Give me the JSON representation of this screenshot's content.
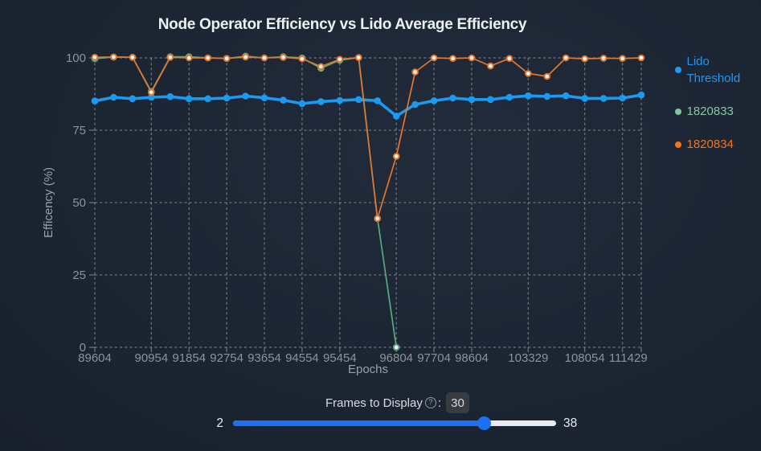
{
  "title": "Node Operator Efficiency vs Lido Average Efficiency",
  "chart_data": {
    "type": "line",
    "title": "Node Operator Efficiency vs Lido Average Efficiency",
    "xlabel": "Epochs",
    "ylabel": "Efficency (%)",
    "ylim": [
      0,
      100
    ],
    "yticks": [
      0,
      25,
      50,
      75,
      100
    ],
    "n_points": 30,
    "x_tick_labels": [
      {
        "index": 0,
        "label": "89604"
      },
      {
        "index": 3,
        "label": "90954"
      },
      {
        "index": 5,
        "label": "91854"
      },
      {
        "index": 7,
        "label": "92754"
      },
      {
        "index": 9,
        "label": "93654"
      },
      {
        "index": 11,
        "label": "94554"
      },
      {
        "index": 13,
        "label": "95454"
      },
      {
        "index": 16,
        "label": "96804"
      },
      {
        "index": 18,
        "label": "97704"
      },
      {
        "index": 20,
        "label": "98604"
      },
      {
        "index": 23,
        "label": "103329"
      },
      {
        "index": 26,
        "label": "108054"
      },
      {
        "index": 28,
        "label": "111429"
      }
    ],
    "grid": "dashed",
    "legend_position": "right",
    "series": [
      {
        "name": "Lido Threshold",
        "line_color": "#1b9af2",
        "marker": "solid-dot",
        "values": [
          85.1,
          86.4,
          85.9,
          86.4,
          86.6,
          85.9,
          85.9,
          86.1,
          86.8,
          86.2,
          85.4,
          84.2,
          84.9,
          85.3,
          85.6,
          85.2,
          79.9,
          83.9,
          85.2,
          86.1,
          85.6,
          85.6,
          86.4,
          86.9,
          86.7,
          86.9,
          86.0,
          86.0,
          86.1,
          87.2
        ]
      },
      {
        "name": "1820833",
        "line_color": "#57aa81",
        "marker": "white-dot-ring",
        "values": [
          99.7,
          100.3,
          100.2,
          88.4,
          100.4,
          100.4,
          100.0,
          99.8,
          100.6,
          100.0,
          100.4,
          100.0,
          96.4,
          99.2,
          100.1,
          44.5,
          0,
          null,
          null,
          null,
          null,
          null,
          null,
          null,
          null,
          null,
          null,
          null,
          null,
          null
        ]
      },
      {
        "name": "1820834",
        "line_color": "#e4762e",
        "marker": "white-dot-ring",
        "values": [
          100.2,
          100.3,
          100.2,
          88.1,
          100.2,
          100.0,
          100.0,
          99.8,
          100.3,
          100.0,
          100.2,
          99.7,
          97.0,
          99.5,
          100.1,
          44.5,
          66.0,
          95.1,
          100.0,
          99.8,
          100.0,
          97.2,
          99.8,
          94.6,
          93.6,
          100.0,
          99.7,
          99.9,
          99.8,
          100.0
        ]
      }
    ]
  },
  "legend": {
    "items": [
      {
        "label": "Lido Threshold",
        "color": "#2196f3",
        "dot_color": "#1e9bf0"
      },
      {
        "label": "1820833",
        "color": "#85c8a3",
        "dot_color": "#7ec7a0"
      },
      {
        "label": "1820834",
        "color": "#f4751d",
        "dot_color": "#f4731c"
      }
    ]
  },
  "controls": {
    "frames_label": "Frames to Display",
    "help_icon_glyph": "?",
    "separator": ":",
    "frames_value": "30",
    "slider": {
      "min": 2,
      "max": 38,
      "value": 30,
      "min_label": "2",
      "max_label": "38"
    }
  },
  "style": {
    "grid_color": "#9aa1ab",
    "axis_text_color": "#8c939c",
    "background": "#1b2431"
  }
}
